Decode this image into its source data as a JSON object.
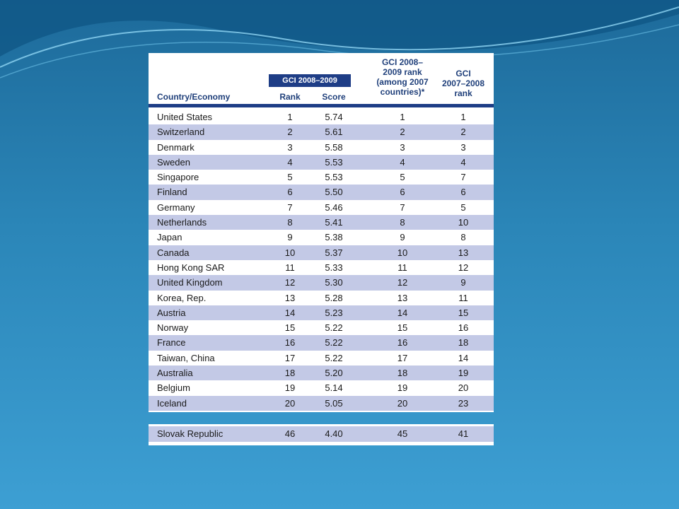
{
  "table": {
    "headers": {
      "country": "Country/Economy",
      "gci_banner": "GCI 2008–2009",
      "rank": "Rank",
      "score": "Score",
      "gci_0809_rank": [
        "GCI 2008–",
        "2009 rank",
        "(among 2007",
        "countries)*"
      ],
      "gci_0708_rank": [
        "GCI",
        "2007–2008",
        "rank"
      ]
    },
    "rows": [
      {
        "country": "United States",
        "rank": "1",
        "score": "5.74",
        "r0809": "1",
        "r0708": "1"
      },
      {
        "country": "Switzerland",
        "rank": "2",
        "score": "5.61",
        "r0809": "2",
        "r0708": "2"
      },
      {
        "country": "Denmark",
        "rank": "3",
        "score": "5.58",
        "r0809": "3",
        "r0708": "3"
      },
      {
        "country": "Sweden",
        "rank": "4",
        "score": "5.53",
        "r0809": "4",
        "r0708": "4"
      },
      {
        "country": "Singapore",
        "rank": "5",
        "score": "5.53",
        "r0809": "5",
        "r0708": "7"
      },
      {
        "country": "Finland",
        "rank": "6",
        "score": "5.50",
        "r0809": "6",
        "r0708": "6"
      },
      {
        "country": "Germany",
        "rank": "7",
        "score": "5.46",
        "r0809": "7",
        "r0708": "5"
      },
      {
        "country": "Netherlands",
        "rank": "8",
        "score": "5.41",
        "r0809": "8",
        "r0708": "10"
      },
      {
        "country": "Japan",
        "rank": "9",
        "score": "5.38",
        "r0809": "9",
        "r0708": "8"
      },
      {
        "country": "Canada",
        "rank": "10",
        "score": "5.37",
        "r0809": "10",
        "r0708": "13"
      },
      {
        "country": "Hong Kong SAR",
        "rank": "11",
        "score": "5.33",
        "r0809": "11",
        "r0708": "12"
      },
      {
        "country": "United Kingdom",
        "rank": "12",
        "score": "5.30",
        "r0809": "12",
        "r0708": "9"
      },
      {
        "country": "Korea, Rep.",
        "rank": "13",
        "score": "5.28",
        "r0809": "13",
        "r0708": "11"
      },
      {
        "country": "Austria",
        "rank": "14",
        "score": "5.23",
        "r0809": "14",
        "r0708": "15"
      },
      {
        "country": "Norway",
        "rank": "15",
        "score": "5.22",
        "r0809": "15",
        "r0708": "16"
      },
      {
        "country": "France",
        "rank": "16",
        "score": "5.22",
        "r0809": "16",
        "r0708": "18"
      },
      {
        "country": "Taiwan, China",
        "rank": "17",
        "score": "5.22",
        "r0809": "17",
        "r0708": "14"
      },
      {
        "country": "Australia",
        "rank": "18",
        "score": "5.20",
        "r0809": "18",
        "r0708": "19"
      },
      {
        "country": "Belgium",
        "rank": "19",
        "score": "5.14",
        "r0809": "19",
        "r0708": "20"
      },
      {
        "country": "Iceland",
        "rank": "20",
        "score": "5.05",
        "r0809": "20",
        "r0708": "23"
      }
    ],
    "extra_row": {
      "country": "Slovak Republic",
      "rank": "46",
      "score": "4.40",
      "r0809": "45",
      "r0708": "41"
    }
  },
  "colors": {
    "header_navy": "#1e3d86",
    "row_stripe": "#c3c9e6",
    "background_blue": "#2b86b8"
  }
}
